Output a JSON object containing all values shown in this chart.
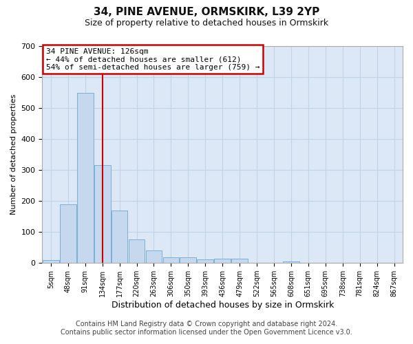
{
  "title_line1": "34, PINE AVENUE, ORMSKIRK, L39 2YP",
  "title_line2": "Size of property relative to detached houses in Ormskirk",
  "xlabel": "Distribution of detached houses by size in Ormskirk",
  "ylabel": "Number of detached properties",
  "footnote_line1": "Contains HM Land Registry data © Crown copyright and database right 2024.",
  "footnote_line2": "Contains public sector information licensed under the Open Government Licence v3.0.",
  "bin_labels": [
    "5sqm",
    "48sqm",
    "91sqm",
    "134sqm",
    "177sqm",
    "220sqm",
    "263sqm",
    "306sqm",
    "350sqm",
    "393sqm",
    "436sqm",
    "479sqm",
    "522sqm",
    "565sqm",
    "608sqm",
    "651sqm",
    "695sqm",
    "738sqm",
    "781sqm",
    "824sqm",
    "867sqm"
  ],
  "bar_values": [
    9,
    188,
    548,
    315,
    168,
    75,
    40,
    18,
    18,
    12,
    13,
    13,
    0,
    0,
    5,
    0,
    0,
    0,
    0,
    0,
    0
  ],
  "bar_color": "#c5d8ee",
  "bar_edge_color": "#7aafd4",
  "grid_color": "#c0d4e8",
  "bg_color": "#dce8f5",
  "vline_x": 3,
  "annotation_line1": "34 PINE AVENUE: 126sqm",
  "annotation_line2": "← 44% of detached houses are smaller (612)",
  "annotation_line3": "54% of semi-detached houses are larger (759) →",
  "annotation_box_facecolor": "#ffffff",
  "annotation_box_edgecolor": "#cc0000",
  "vline_color": "#cc0000",
  "ylim": [
    0,
    700
  ],
  "yticks": [
    0,
    100,
    200,
    300,
    400,
    500,
    600,
    700
  ],
  "title1_fontsize": 11,
  "title2_fontsize": 9,
  "ylabel_fontsize": 8,
  "xlabel_fontsize": 9,
  "tick_fontsize": 8,
  "xtick_fontsize": 7,
  "annot_fontsize": 8,
  "footnote_fontsize": 7
}
